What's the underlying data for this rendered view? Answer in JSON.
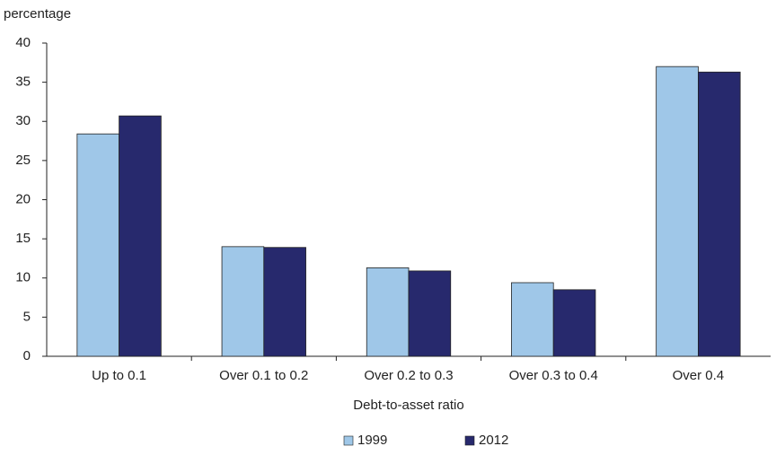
{
  "chart_data": {
    "type": "bar",
    "y_label": "percentage",
    "x_label": "Debt-to-asset ratio",
    "categories": [
      "Up to 0.1",
      "Over 0.1 to 0.2",
      "Over 0.2 to 0.3",
      "Over 0.3 to 0.4",
      "Over 0.4"
    ],
    "series": [
      {
        "name": "1999",
        "color": "#9fc7e8",
        "values": [
          28.4,
          14.0,
          11.3,
          9.4,
          37.0
        ]
      },
      {
        "name": "2012",
        "color": "#27296d",
        "values": [
          30.7,
          13.9,
          10.9,
          8.5,
          36.3
        ]
      }
    ],
    "ylim": [
      0,
      40
    ],
    "yticks": [
      0,
      5,
      10,
      15,
      20,
      25,
      30,
      35,
      40
    ],
    "grid": false,
    "legend": "bottom"
  }
}
